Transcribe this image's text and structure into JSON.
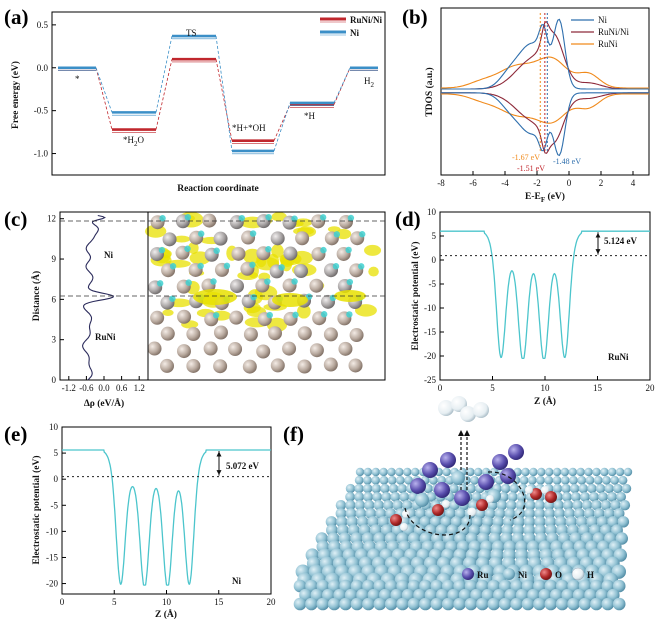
{
  "panels": {
    "a": "(a)",
    "b": "(b)",
    "c": "(c)",
    "d": "(d)",
    "e": "(e)",
    "f": "(f)"
  },
  "chart_data": [
    {
      "id": "a",
      "type": "line",
      "title": "",
      "xlabel": "Reaction coordinate",
      "ylabel": "Free energy (eV)",
      "ylim": [
        -1.25,
        0.65
      ],
      "yticks": [
        "0.5",
        "0.0",
        "-0.5",
        "-1.0"
      ],
      "ytick_values": [
        0.5,
        0.0,
        -0.5,
        -1.0
      ],
      "states": [
        "*",
        "*H2O",
        "TS",
        "*H+*OH",
        "*H",
        "H2"
      ],
      "state_labels": {
        "star": "*",
        "h2o_a": "*H",
        "h2o_b": "2",
        "h2o_c": "O",
        "ts": "TS",
        "hoh": "*H+*OH",
        "h": "*H",
        "h2_a": "H",
        "h2_b": "2"
      },
      "series": [
        {
          "name": "RuNi/Ni",
          "color": "#c0272d",
          "values": [
            0.0,
            -0.72,
            0.1,
            -0.85,
            -0.43,
            0.0
          ]
        },
        {
          "name": "Ni",
          "color": "#3b8fc7",
          "values": [
            0.0,
            -0.52,
            0.37,
            -0.97,
            -0.41,
            0.0
          ]
        }
      ]
    },
    {
      "id": "b",
      "type": "line",
      "xlabel": "E-E",
      "xlabel_sub": "F",
      "xlabel_unit": "(eV)",
      "ylabel": "TDOS (a.u.)",
      "xlim": [
        -8,
        5
      ],
      "xticks": [
        "-8",
        "-6",
        "-4",
        "-2",
        "0",
        "2",
        "4"
      ],
      "series": [
        {
          "name": "Ni",
          "color": "#2f6fad"
        },
        {
          "name": "RuNi/Ni",
          "color": "#8e2a3a"
        },
        {
          "name": "RuNi",
          "color": "#f08a1c"
        }
      ],
      "annotations": [
        {
          "text": "-1.67 eV",
          "color": "#f08a1c",
          "x": -1.67
        },
        {
          "text": "-1.51 eV",
          "color": "#c0272d",
          "x": -1.51
        },
        {
          "text": "-1.48 eV",
          "color": "#2f6fad",
          "x": -1.48
        }
      ]
    },
    {
      "id": "c",
      "type": "line",
      "xlabel": "Δρ (eV/Å)",
      "ylabel": "Distance (Å)",
      "xticks": [
        "-1.2",
        "-0.6",
        "0.0",
        "0.6",
        "1.2"
      ],
      "yticks": [
        "0",
        "3",
        "6",
        "9",
        "12"
      ],
      "ylim": [
        0,
        12.5
      ],
      "region_labels": [
        "Ni",
        "RuNi"
      ],
      "dashed_levels": [
        6.2,
        11.9
      ]
    },
    {
      "id": "d",
      "type": "line",
      "xlabel": "Z (Å)",
      "ylabel": "Electrostatic potential (eV)",
      "xlim": [
        0,
        20
      ],
      "ylim": [
        -25,
        10
      ],
      "xticks": [
        "0",
        "5",
        "10",
        "15",
        "20"
      ],
      "yticks": [
        "10",
        "5",
        "0",
        "-5",
        "-10",
        "-15",
        "-20",
        "-25"
      ],
      "fermi_level": 0.9,
      "vacuum_level": 6.0,
      "work_function": "5.124 eV",
      "wells": [
        5.8,
        7.9,
        9.9,
        11.9
      ],
      "well_depth": -20.5,
      "label": "RuNi",
      "color": "#4cc5cc"
    },
    {
      "id": "e",
      "type": "line",
      "xlabel": "Z (Å)",
      "ylabel": "Electrostatic potential (eV)",
      "xlim": [
        0,
        20
      ],
      "ylim": [
        -22,
        10
      ],
      "xticks": [
        "0",
        "5",
        "10",
        "15",
        "20"
      ],
      "yticks": [
        "10",
        "5",
        "0",
        "-5",
        "-10",
        "-15",
        "-20"
      ],
      "fermi_level": 0.5,
      "vacuum_level": 5.6,
      "work_function": "5.072 eV",
      "wells": [
        5.6,
        7.9,
        10.1,
        12.2
      ],
      "well_depth": -20.3,
      "label": "Ni",
      "color": "#4cc5cc"
    }
  ],
  "schematic": {
    "legend": [
      {
        "label": "Ru",
        "color": "#5a4fae"
      },
      {
        "label": "Ni",
        "color": "#7fb2c7"
      },
      {
        "label": "O",
        "color": "#b02a2a"
      },
      {
        "label": "H",
        "color": "#e6eef2"
      }
    ]
  }
}
